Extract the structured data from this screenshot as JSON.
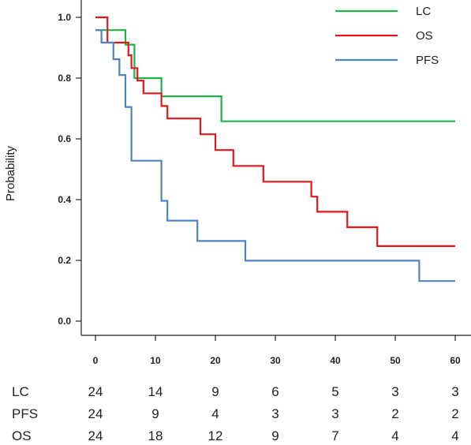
{
  "chart_data": {
    "type": "line",
    "title": "",
    "xlabel": "",
    "ylabel": "Probability",
    "xlim": [
      0,
      60
    ],
    "ylim": [
      0,
      1
    ],
    "x_ticks": [
      0,
      10,
      20,
      30,
      40,
      50,
      60
    ],
    "y_ticks": [
      "0.0",
      "0.2",
      "0.4",
      "0.6",
      "0.8",
      "1.0"
    ],
    "grid": false,
    "legend_position": "top-right",
    "series": [
      {
        "name": "LC",
        "color": "#1db34a",
        "step": true,
        "points": [
          [
            0,
            0.958
          ],
          [
            5,
            0.958
          ],
          [
            5,
            0.91
          ],
          [
            6.5,
            0.91
          ],
          [
            6.5,
            0.8
          ],
          [
            11,
            0.8
          ],
          [
            11,
            0.74
          ],
          [
            21,
            0.74
          ],
          [
            21,
            0.658
          ],
          [
            60,
            0.658
          ]
        ]
      },
      {
        "name": "OS",
        "color": "#e8141b",
        "step": true,
        "points": [
          [
            0,
            1.0
          ],
          [
            2,
            1.0
          ],
          [
            2,
            0.917
          ],
          [
            5.5,
            0.917
          ],
          [
            5.5,
            0.875
          ],
          [
            6,
            0.875
          ],
          [
            6,
            0.833
          ],
          [
            7,
            0.833
          ],
          [
            7,
            0.792
          ],
          [
            8,
            0.792
          ],
          [
            8,
            0.75
          ],
          [
            11,
            0.75
          ],
          [
            11,
            0.708
          ],
          [
            12,
            0.708
          ],
          [
            12,
            0.667
          ],
          [
            17.5,
            0.667
          ],
          [
            17.5,
            0.615
          ],
          [
            20,
            0.615
          ],
          [
            20,
            0.563
          ],
          [
            23,
            0.563
          ],
          [
            23,
            0.511
          ],
          [
            28,
            0.511
          ],
          [
            28,
            0.459
          ],
          [
            36,
            0.459
          ],
          [
            36,
            0.41
          ],
          [
            37,
            0.41
          ],
          [
            37,
            0.36
          ],
          [
            42,
            0.36
          ],
          [
            42,
            0.309
          ],
          [
            47,
            0.309
          ],
          [
            47,
            0.247
          ],
          [
            60,
            0.247
          ]
        ]
      },
      {
        "name": "PFS",
        "color": "#4f83c4",
        "step": true,
        "points": [
          [
            0,
            0.958
          ],
          [
            1,
            0.958
          ],
          [
            1,
            0.917
          ],
          [
            3,
            0.917
          ],
          [
            3,
            0.862
          ],
          [
            4,
            0.862
          ],
          [
            4,
            0.81
          ],
          [
            5,
            0.81
          ],
          [
            5,
            0.705
          ],
          [
            6,
            0.705
          ],
          [
            6,
            0.528
          ],
          [
            11,
            0.528
          ],
          [
            11,
            0.396
          ],
          [
            12,
            0.396
          ],
          [
            12,
            0.331
          ],
          [
            17,
            0.331
          ],
          [
            17,
            0.264
          ],
          [
            25,
            0.264
          ],
          [
            25,
            0.199
          ],
          [
            54,
            0.199
          ],
          [
            54,
            0.132
          ],
          [
            60,
            0.132
          ]
        ]
      }
    ],
    "risk_table": {
      "times": [
        0,
        10,
        20,
        30,
        40,
        50,
        60
      ],
      "rows": [
        {
          "label": "LC",
          "values": [
            "24",
            "14",
            "9",
            "6",
            "5",
            "3",
            "3"
          ]
        },
        {
          "label": "PFS",
          "values": [
            "24",
            "9",
            "4",
            "3",
            "3",
            "2",
            "2"
          ]
        },
        {
          "label": "OS",
          "values": [
            "24",
            "18",
            "12",
            "9",
            "7",
            "4",
            "4"
          ]
        }
      ]
    }
  }
}
